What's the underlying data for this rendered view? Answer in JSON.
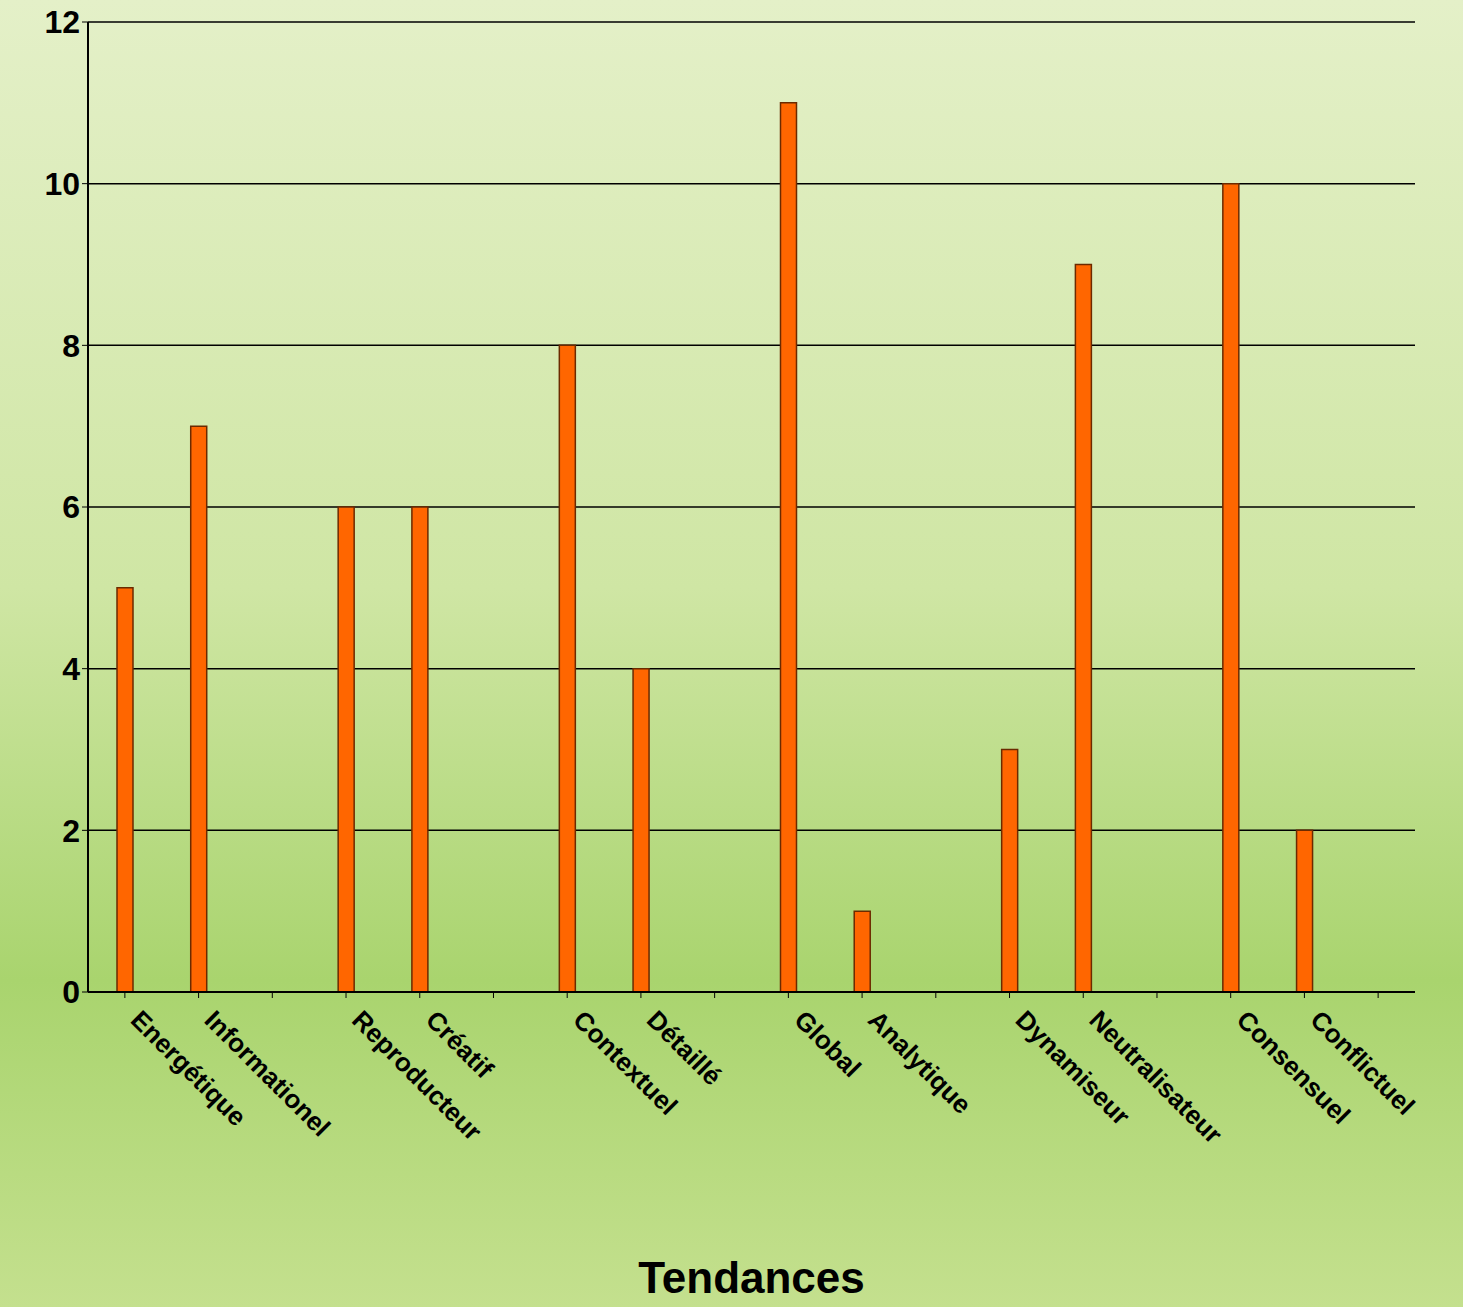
{
  "chart_data": {
    "type": "bar",
    "x_label": "Tendances",
    "categories": [
      "Energétique",
      "Informationel",
      null,
      "Reproducteur",
      "Créatif",
      null,
      "Contextuel",
      "Détaillé",
      null,
      "Global",
      "Analytique",
      null,
      "Dynamiseur",
      "Neutralisateur",
      null,
      "Consensuel",
      "Conflictuel",
      null
    ],
    "values": [
      5,
      7,
      0,
      6,
      6,
      0,
      8,
      4,
      0,
      11,
      1,
      0,
      3,
      9,
      0,
      10,
      2,
      0
    ],
    "color": "#ff6600",
    "ylim": [
      0,
      12
    ],
    "yticks": [
      0,
      2,
      4,
      6,
      8,
      10,
      12
    ],
    "grid": true
  }
}
